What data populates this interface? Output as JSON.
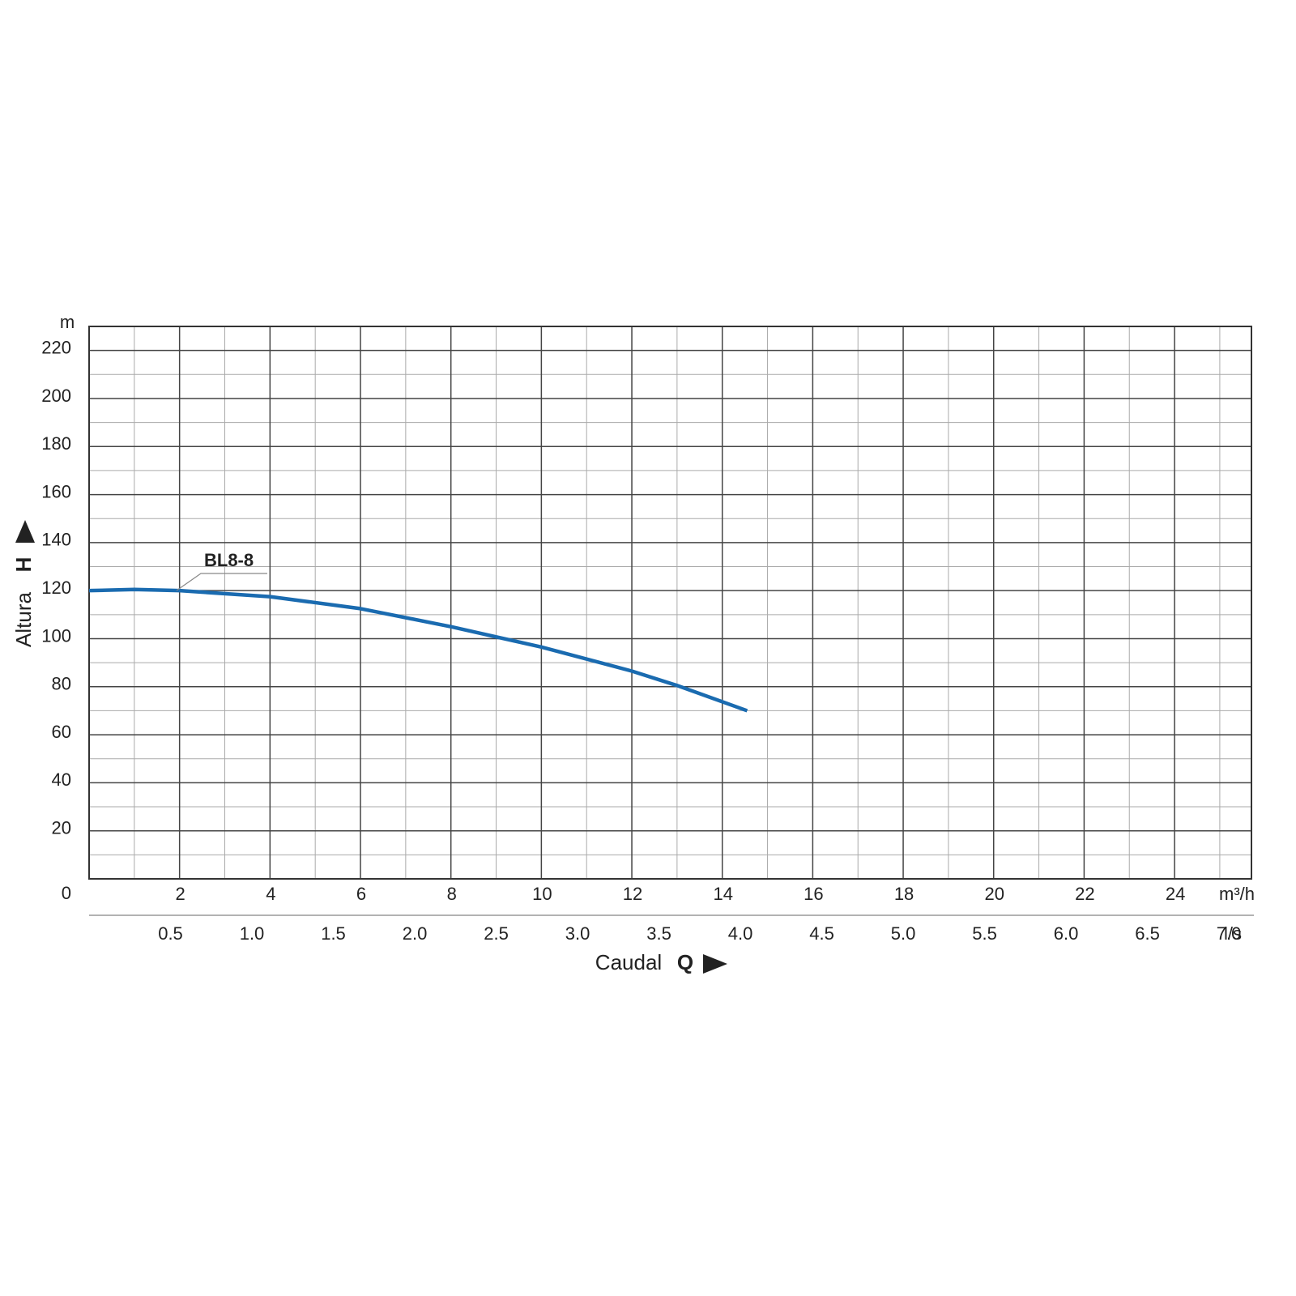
{
  "chart_data": {
    "type": "line",
    "y_label": "Altura",
    "y_symbol": "H",
    "y_unit": "m",
    "x_label": "Caudal",
    "x_symbol": "Q",
    "x_unit": "m³/h",
    "x2_unit": "l/s",
    "x": [
      0,
      1,
      2,
      4,
      6,
      8,
      10,
      12,
      13,
      14.55
    ],
    "series": [
      {
        "name": "BL8-8",
        "color": "#1a6bb0",
        "values": [
          120,
          120.5,
          120,
          117.5,
          112.5,
          105,
          96.5,
          86.5,
          80.5,
          70
        ]
      }
    ],
    "xlim": [
      0,
      25.7
    ],
    "xticks": [
      2,
      4,
      6,
      8,
      10,
      12,
      14,
      16,
      18,
      20,
      22,
      24
    ],
    "x2lim": [
      0,
      7.139
    ],
    "x2ticks": [
      {
        "value": 0.5,
        "label": "0.5"
      },
      {
        "value": 1,
        "label": "1.0"
      },
      {
        "value": 1.5,
        "label": "1.5"
      },
      {
        "value": 2,
        "label": "2.0"
      },
      {
        "value": 2.5,
        "label": "2.5"
      },
      {
        "value": 3,
        "label": "3.0"
      },
      {
        "value": 3.5,
        "label": "3.5"
      },
      {
        "value": 4,
        "label": "4.0"
      },
      {
        "value": 4.5,
        "label": "4.5"
      },
      {
        "value": 5,
        "label": "5.0"
      },
      {
        "value": 5.5,
        "label": "5.5"
      },
      {
        "value": 6,
        "label": "6.0"
      },
      {
        "value": 6.5,
        "label": "6.5"
      },
      {
        "value": 7,
        "label": "7.0"
      }
    ],
    "ylim": [
      0,
      230
    ],
    "yticks": [
      0,
      20,
      40,
      60,
      80,
      100,
      120,
      140,
      160,
      180,
      200,
      220
    ],
    "grid": true
  }
}
